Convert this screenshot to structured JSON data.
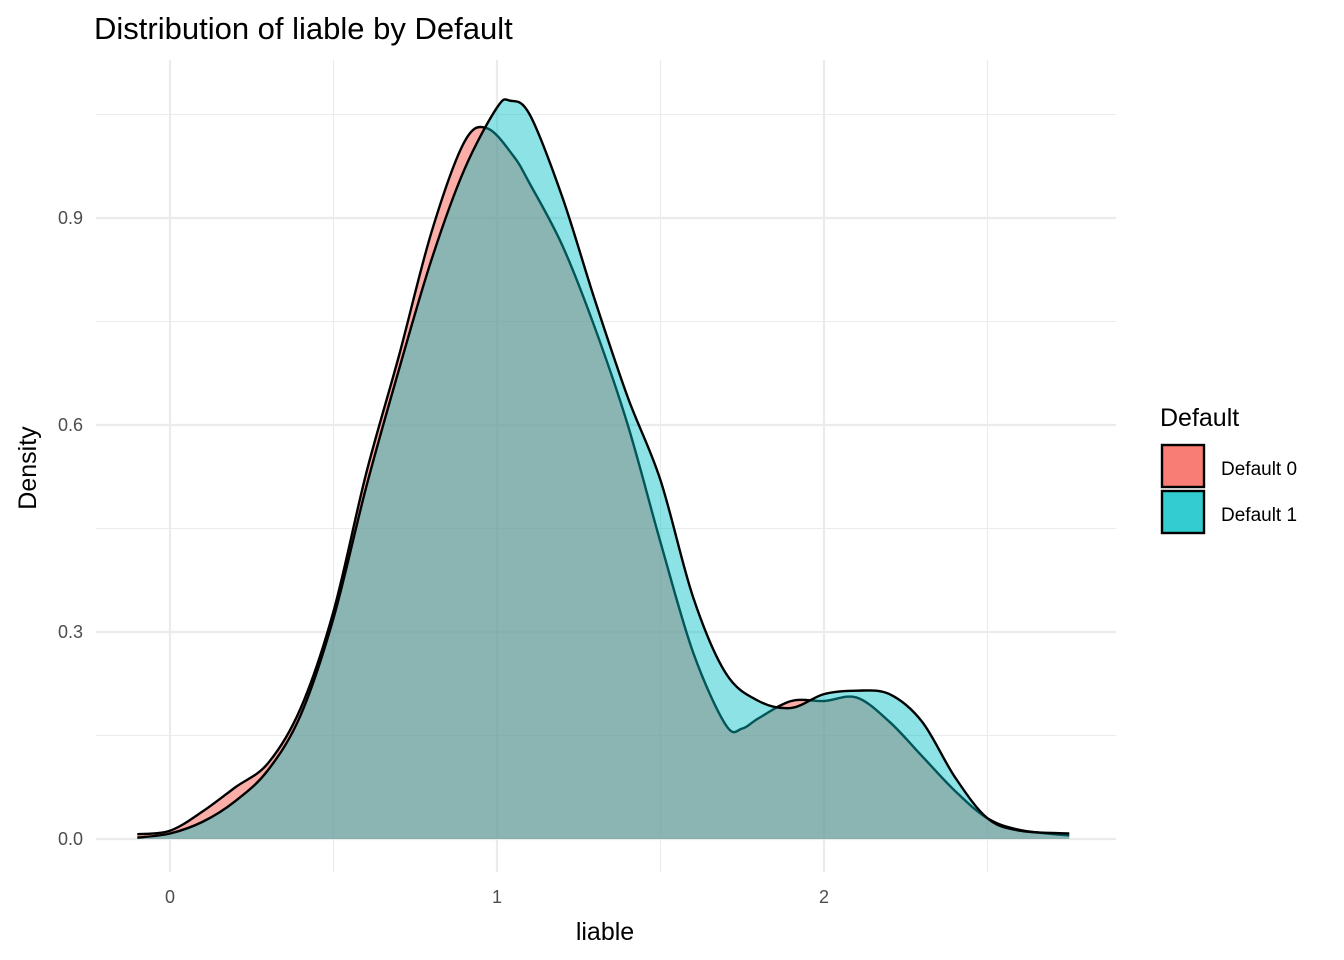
{
  "chart_data": {
    "type": "area",
    "title": "Distribution of liable by Default",
    "xlabel": "liable",
    "ylabel": "Density",
    "xlim": [
      -0.1,
      2.75
    ],
    "ylim": [
      0,
      1.08
    ],
    "x_ticks": [
      0,
      1,
      2
    ],
    "x_tick_labels": [
      "0",
      "1",
      "2"
    ],
    "x_minor_ticks": [
      0.5,
      1.5,
      2.5
    ],
    "y_ticks": [
      0,
      0.3,
      0.6,
      0.9
    ],
    "y_tick_labels": [
      "0.0",
      "0.3",
      "0.6",
      "0.9"
    ],
    "y_minor_ticks": [
      0.15,
      0.45,
      0.75,
      1.05
    ],
    "grid": true,
    "legend": {
      "title": "Default",
      "position": "right",
      "entries": [
        "Default 0",
        "Default 1"
      ]
    },
    "series": [
      {
        "name": "Default 0",
        "color": "#F8766D",
        "opacity": 0.6,
        "x": [
          -0.1,
          0.0,
          0.1,
          0.2,
          0.3,
          0.4,
          0.5,
          0.6,
          0.7,
          0.8,
          0.9,
          0.97,
          1.05,
          1.1,
          1.2,
          1.3,
          1.4,
          1.5,
          1.6,
          1.7,
          1.75,
          1.8,
          1.9,
          2.0,
          2.1,
          2.2,
          2.3,
          2.4,
          2.5,
          2.6,
          2.75
        ],
        "y": [
          0.007,
          0.012,
          0.04,
          0.075,
          0.11,
          0.19,
          0.33,
          0.53,
          0.7,
          0.88,
          1.01,
          1.03,
          0.99,
          0.95,
          0.86,
          0.74,
          0.6,
          0.43,
          0.27,
          0.165,
          0.16,
          0.175,
          0.2,
          0.2,
          0.205,
          0.17,
          0.12,
          0.07,
          0.03,
          0.013,
          0.005
        ]
      },
      {
        "name": "Default 1",
        "color": "#00BFC4",
        "opacity": 0.45,
        "x": [
          -0.1,
          0.0,
          0.1,
          0.2,
          0.3,
          0.4,
          0.5,
          0.6,
          0.7,
          0.8,
          0.9,
          1.0,
          1.04,
          1.1,
          1.2,
          1.3,
          1.4,
          1.5,
          1.6,
          1.7,
          1.8,
          1.9,
          2.0,
          2.1,
          2.2,
          2.3,
          2.4,
          2.5,
          2.6,
          2.75
        ],
        "y": [
          0.002,
          0.008,
          0.025,
          0.055,
          0.1,
          0.18,
          0.32,
          0.51,
          0.68,
          0.84,
          0.97,
          1.06,
          1.07,
          1.05,
          0.93,
          0.78,
          0.64,
          0.52,
          0.35,
          0.24,
          0.2,
          0.19,
          0.21,
          0.215,
          0.21,
          0.17,
          0.09,
          0.03,
          0.012,
          0.008
        ]
      }
    ]
  }
}
